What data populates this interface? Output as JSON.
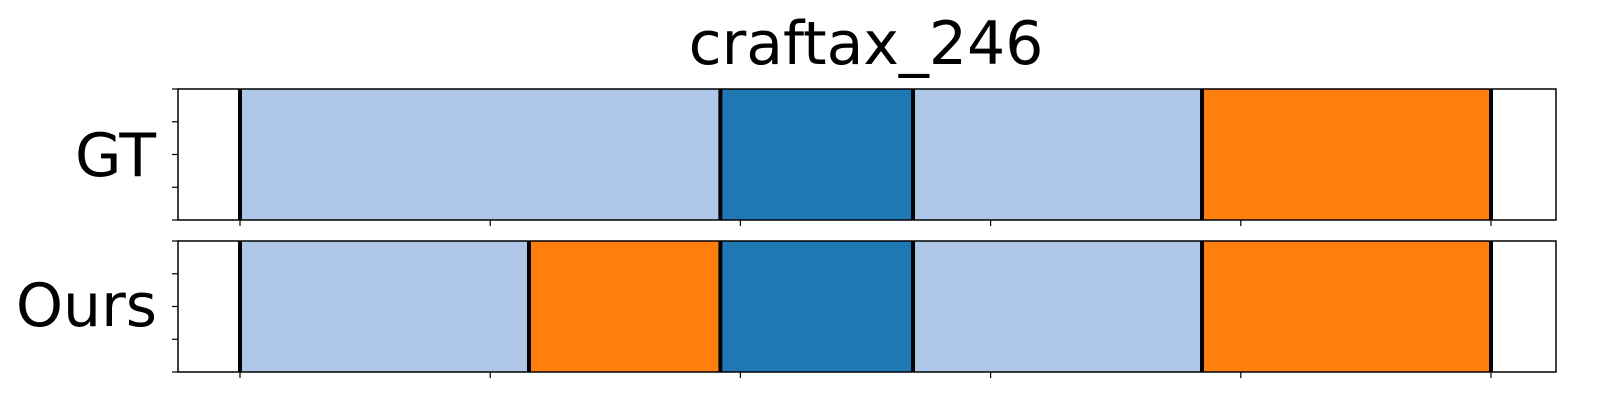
{
  "chart_data": {
    "type": "bar",
    "title": "craftax_246",
    "xlabel": "",
    "ylabel": "",
    "xlim": [
      0,
      1.1
    ],
    "grid": false,
    "legend": "none",
    "rows": [
      {
        "label": "GT",
        "segments": [
          {
            "start": 0.0,
            "end": 0.384,
            "color": "#aec7e8"
          },
          {
            "start": 0.384,
            "end": 0.538,
            "color": "#1f77b4"
          },
          {
            "start": 0.538,
            "end": 0.769,
            "color": "#aec7e8"
          },
          {
            "start": 0.769,
            "end": 1.0,
            "color": "#ff7f0e"
          }
        ],
        "boundaries": [
          0.0,
          0.384,
          0.538,
          0.769,
          1.0
        ]
      },
      {
        "label": "Ours",
        "segments": [
          {
            "start": 0.0,
            "end": 0.231,
            "color": "#aec7e8"
          },
          {
            "start": 0.231,
            "end": 0.384,
            "color": "#ff7f0e"
          },
          {
            "start": 0.384,
            "end": 0.538,
            "color": "#1f77b4"
          },
          {
            "start": 0.538,
            "end": 0.769,
            "color": "#aec7e8"
          },
          {
            "start": 0.769,
            "end": 1.0,
            "color": "#ff7f0e"
          }
        ],
        "boundaries": [
          0.0,
          0.231,
          0.384,
          0.538,
          0.769,
          1.0
        ]
      }
    ],
    "x_ticks": [
      0.0,
      0.2,
      0.4,
      0.6,
      0.8,
      1.0
    ],
    "y_ticks": [
      0,
      0.25,
      0.5,
      0.75,
      1.0
    ]
  }
}
